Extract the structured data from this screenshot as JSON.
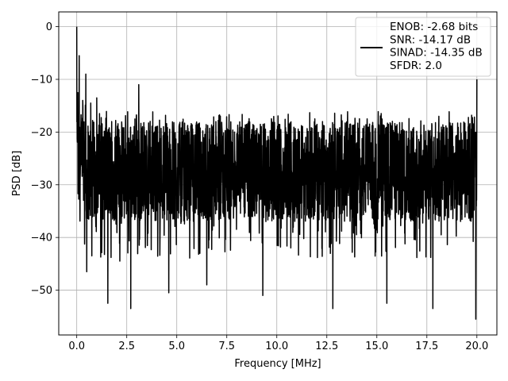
{
  "chart_data": {
    "type": "line",
    "title": "",
    "xlabel": "Frequency [MHz]",
    "ylabel": "PSD [dB]",
    "xlim": [
      -0.9,
      21.0
    ],
    "ylim": [
      -58.5,
      2.8
    ],
    "xticks": [
      0.0,
      2.5,
      5.0,
      7.5,
      10.0,
      12.5,
      15.0,
      17.5,
      20.0
    ],
    "xtick_labels": [
      "0.0",
      "2.5",
      "5.0",
      "7.5",
      "10.0",
      "12.5",
      "15.0",
      "17.5",
      "20.0"
    ],
    "yticks": [
      0,
      -10,
      -20,
      -30,
      -40,
      -50
    ],
    "ytick_labels": [
      "0",
      "−10",
      "−20",
      "−30",
      "−40",
      "−50"
    ],
    "grid": true,
    "legend_position": "top-right",
    "legend_lines": [
      "ENOB: -2.68 bits",
      "SNR: -14.17 dB",
      "SINAD: -14.35 dB",
      "SFDR: 2.0"
    ],
    "series": [
      {
        "color": "#000000",
        "x_range": [
          0.0,
          20.0
        ],
        "typical_range_db": [
          -37,
          -18
        ],
        "peaks": [
          {
            "x": 0.0,
            "y": 0.0
          },
          {
            "x": 0.05,
            "y": -12.5
          },
          {
            "x": 0.12,
            "y": -5.5
          },
          {
            "x": 0.3,
            "y": -14.0
          },
          {
            "x": 0.45,
            "y": -9.0
          },
          {
            "x": 0.7,
            "y": -14.5
          },
          {
            "x": 1.0,
            "y": -13.5
          },
          {
            "x": 3.1,
            "y": -11.0
          },
          {
            "x": 20.0,
            "y": -10.0
          }
        ],
        "dips": [
          {
            "x": 0.5,
            "y": -46.5
          },
          {
            "x": 0.75,
            "y": -43.5
          },
          {
            "x": 1.55,
            "y": -52.5
          },
          {
            "x": 2.15,
            "y": -44.5
          },
          {
            "x": 2.7,
            "y": -53.5
          },
          {
            "x": 4.6,
            "y": -50.5
          },
          {
            "x": 6.5,
            "y": -49.0
          },
          {
            "x": 9.3,
            "y": -51.0
          },
          {
            "x": 12.8,
            "y": -53.5
          },
          {
            "x": 15.5,
            "y": -52.5
          },
          {
            "x": 17.8,
            "y": -53.5
          },
          {
            "x": 19.95,
            "y": -55.5
          }
        ]
      }
    ]
  }
}
